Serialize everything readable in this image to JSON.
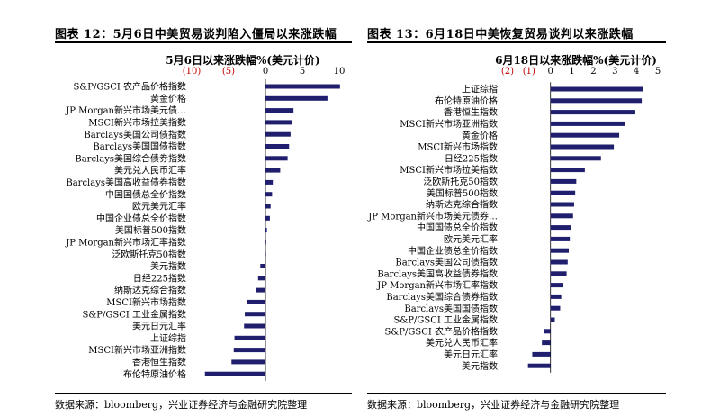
{
  "panels": [
    {
      "title": "图表 12：5月6日中美贸易谈判陷入僵局以来涨跌幅",
      "source": "数据来源：bloomberg，兴业证券经济与金融研究院整理"
    },
    {
      "title": "图表 13：6月18日中美恢复贸易谈判以来涨跌幅",
      "source": "数据来源：bloomberg，兴业证券经济与金融研究院整理"
    }
  ],
  "chart_data": [
    {
      "type": "bar",
      "orientation": "horizontal",
      "title": "5月6日以来涨跌幅%(美元计价)",
      "xlim": [
        -10,
        10
      ],
      "ticks": [
        -10,
        -5,
        0,
        5,
        10
      ],
      "tick_labels": [
        "(10)",
        "(5)",
        "0",
        "5",
        "10"
      ],
      "tick_colors": [
        "#c00000",
        "#c00000",
        "#000000",
        "#000000",
        "#000000"
      ],
      "bar_color": "#1f1f6e",
      "categories": [
        "S&P/GSCI 农产品价格指数",
        "黄金价格",
        "JP Morgan新兴市场美元债…",
        "MSCI新兴市场拉美指数",
        "Barclays美国公司债指数",
        "Barclays美国国债指数",
        "Barclays美国综合债券指数",
        "美元兑人民币汇率",
        "Barclays美国高收益债券指数",
        "中国国债总全价指数",
        "欧元美元汇率",
        "中国企业债总全价指数",
        "美国标普500指数",
        "JP Morgan新兴市场汇率指数",
        "泛欧斯托克50指数",
        "美元指数",
        "日经225指数",
        "纳斯达克综合指数",
        "MSCI新兴市场指数",
        "S&P/GSCI 工业金属指数",
        "美元日元汇率",
        "上证综指",
        "MSCI新兴市场亚洲指数",
        "香港恒生指数",
        "布伦特原油价格"
      ],
      "values": [
        10.1,
        8.4,
        3.8,
        3.6,
        3.4,
        3.2,
        3.0,
        2.0,
        1.0,
        0.9,
        0.7,
        0.6,
        0.2,
        0.1,
        0.05,
        -0.7,
        -1.0,
        -1.3,
        -2.5,
        -2.8,
        -2.9,
        -4.2,
        -4.3,
        -4.6,
        -8.2
      ]
    },
    {
      "type": "bar",
      "orientation": "horizontal",
      "title": "6月18日以来涨跌幅%(美元计价)",
      "xlim": [
        -2,
        5
      ],
      "ticks": [
        -2,
        -1,
        0,
        1,
        2,
        3,
        4,
        5
      ],
      "tick_labels": [
        "(2)",
        "(1)",
        "0",
        "1",
        "2",
        "3",
        "4",
        "5"
      ],
      "tick_colors": [
        "#c00000",
        "#c00000",
        "#000000",
        "#000000",
        "#000000",
        "#000000",
        "#000000",
        "#000000"
      ],
      "bar_color": "#1f1f6e",
      "categories": [
        "上证综指",
        "布伦特原油价格",
        "香港恒生指数",
        "MSCI新兴市场亚洲指数",
        "黄金价格",
        "MSCI新兴市场指数",
        "日经225指数",
        "MSCI新兴市场拉美指数",
        "泛欧斯托克50指数",
        "美国标普500指数",
        "纳斯达克综合指数",
        "JP Morgan新兴市场美元债券…",
        "中国国债总全价指数",
        "欧元美元汇率",
        "中国企业债总全价指数",
        "Barclays美国公司债指数",
        "Barclays美国高收益债券指数",
        "JP Morgan新兴市场汇率指数",
        "Barclays美国综合债券指数",
        "Barclays美国国债指数",
        "S&P/GSCI 工业金属指数",
        "S&P/GSCI 农产品价格指数",
        "美元兑人民币汇率",
        "美元日元汇率",
        "美元指数"
      ],
      "values": [
        4.3,
        4.25,
        3.95,
        3.45,
        3.2,
        2.95,
        2.35,
        1.6,
        1.2,
        1.15,
        1.1,
        1.05,
        0.95,
        0.9,
        0.85,
        0.8,
        0.75,
        0.6,
        0.5,
        0.45,
        0.2,
        -0.3,
        -0.4,
        -0.85,
        -1.05
      ]
    }
  ]
}
